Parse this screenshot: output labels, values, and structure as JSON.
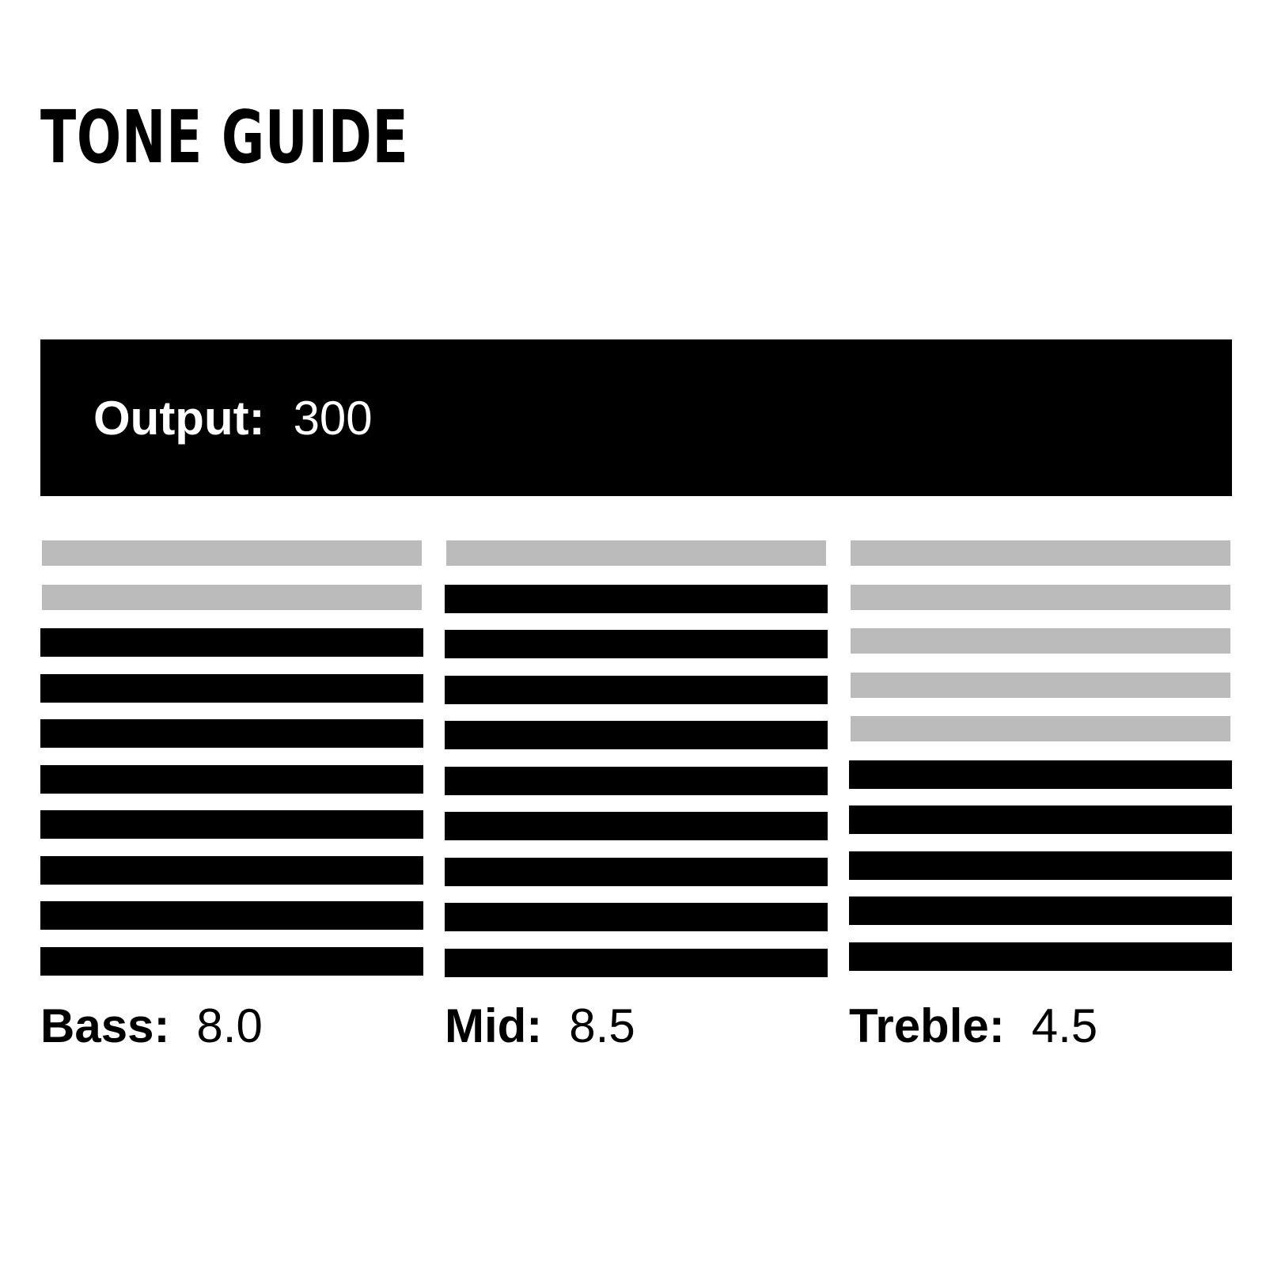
{
  "title": "TONE GUIDE",
  "output": {
    "label": "Output:",
    "value": "300"
  },
  "segments_per_meter": 10,
  "colors": {
    "active": "#000000",
    "inactive": "#bbbbbb"
  },
  "controls": [
    {
      "label": "Bass:",
      "value": "8.0",
      "active_segments": 8
    },
    {
      "label": "Mid:",
      "value": "8.5",
      "active_segments": 9
    },
    {
      "label": "Treble:",
      "value": "4.5",
      "active_segments": 5
    }
  ]
}
